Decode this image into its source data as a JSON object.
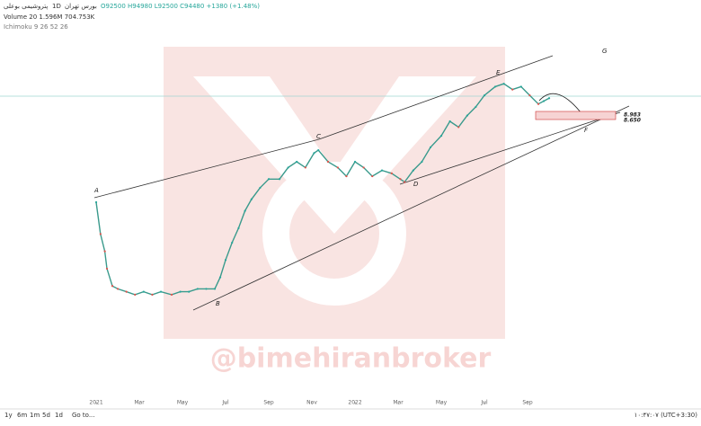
{
  "header": {
    "symbol": "پتروشیمی بوعلی",
    "interval": "1D",
    "exchange": "بورس تهران",
    "ohlc": "O92500 H94980 L92500 C94480 +1380 (+1.48%)",
    "volume": "Volume 20  1.596M  704.753K",
    "indicator": "Ichimoku 9 26 52 26"
  },
  "toolbar": {
    "ranges": [
      "1y",
      "6m",
      "1m",
      "5d",
      "1d"
    ],
    "goto": "Go to...",
    "clock": "۱۰:۴۷:۰۷ (UTC+3:30)"
  },
  "watermark": "@bimehiranbroker",
  "chart_data": {
    "type": "line",
    "color": "#3a9a8c",
    "x": [
      0,
      0.2,
      0.4,
      0.5,
      0.75,
      1,
      1.4,
      1.8,
      2.2,
      2.6,
      3,
      3.5,
      3.9,
      4.3,
      4.7,
      5.1,
      5.5,
      5.75,
      6,
      6.3,
      6.6,
      6.9,
      7.2,
      7.6,
      8,
      8.5,
      8.9,
      9.3,
      9.7,
      10.1,
      10.3,
      10.75,
      11.2,
      11.6,
      12,
      12.4,
      12.8,
      13.25,
      13.7,
      14.1,
      14.3,
      14.7,
      15.1,
      15.5,
      16,
      16.4,
      16.8,
      17.2,
      17.6,
      18,
      18.5,
      18.9,
      19.3,
      19.7,
      20.1,
      20.5,
      20.75,
      21
    ],
    "values": [
      5.8,
      4.7,
      4.1,
      3.5,
      2.9,
      2.8,
      2.7,
      2.6,
      2.7,
      2.6,
      2.7,
      2.6,
      2.7,
      2.7,
      2.8,
      2.8,
      2.8,
      3.2,
      3.8,
      4.4,
      4.9,
      5.5,
      5.9,
      6.3,
      6.6,
      6.6,
      7.0,
      7.2,
      7.0,
      7.5,
      7.6,
      7.2,
      7.0,
      6.7,
      7.2,
      7.0,
      6.7,
      6.9,
      6.8,
      6.6,
      6.5,
      6.9,
      7.2,
      7.7,
      8.1,
      8.6,
      8.4,
      8.8,
      9.1,
      9.5,
      9.8,
      9.9,
      9.7,
      9.8,
      9.5,
      9.2,
      9.3,
      9.4
    ],
    "xlim": [
      -4.46,
      28.04
    ],
    "ylim": [
      -1.2,
      12.8
    ],
    "xticks": [
      {
        "value": 0,
        "label": "2021"
      },
      {
        "value": 2,
        "label": "Mar"
      },
      {
        "value": 4,
        "label": "May"
      },
      {
        "value": 6,
        "label": "Jul"
      },
      {
        "value": 8,
        "label": "Sep"
      },
      {
        "value": 10,
        "label": "Nov"
      },
      {
        "value": 12,
        "label": "2022"
      },
      {
        "value": 14,
        "label": "Mar"
      },
      {
        "value": 16,
        "label": "May"
      },
      {
        "value": 18,
        "label": "Jul"
      },
      {
        "value": 20,
        "label": "Sep"
      }
    ],
    "annotations": [
      "A",
      "B",
      "C",
      "D",
      "E",
      "F",
      "G"
    ],
    "levels": [
      "8.983",
      "8.650"
    ]
  }
}
